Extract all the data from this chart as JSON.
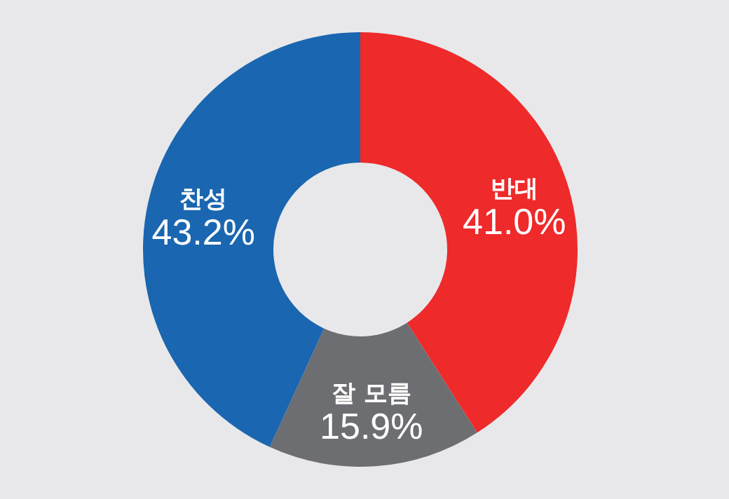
{
  "chart_data": {
    "type": "donut",
    "categories": [
      "반대",
      "잘 모름",
      "찬성"
    ],
    "values": [
      41.0,
      15.9,
      43.2
    ],
    "colors": [
      "#ee2a2b",
      "#6d6e71",
      "#1a66b0"
    ],
    "value_labels": [
      "41.0%",
      "15.9%",
      "43.2%"
    ]
  }
}
